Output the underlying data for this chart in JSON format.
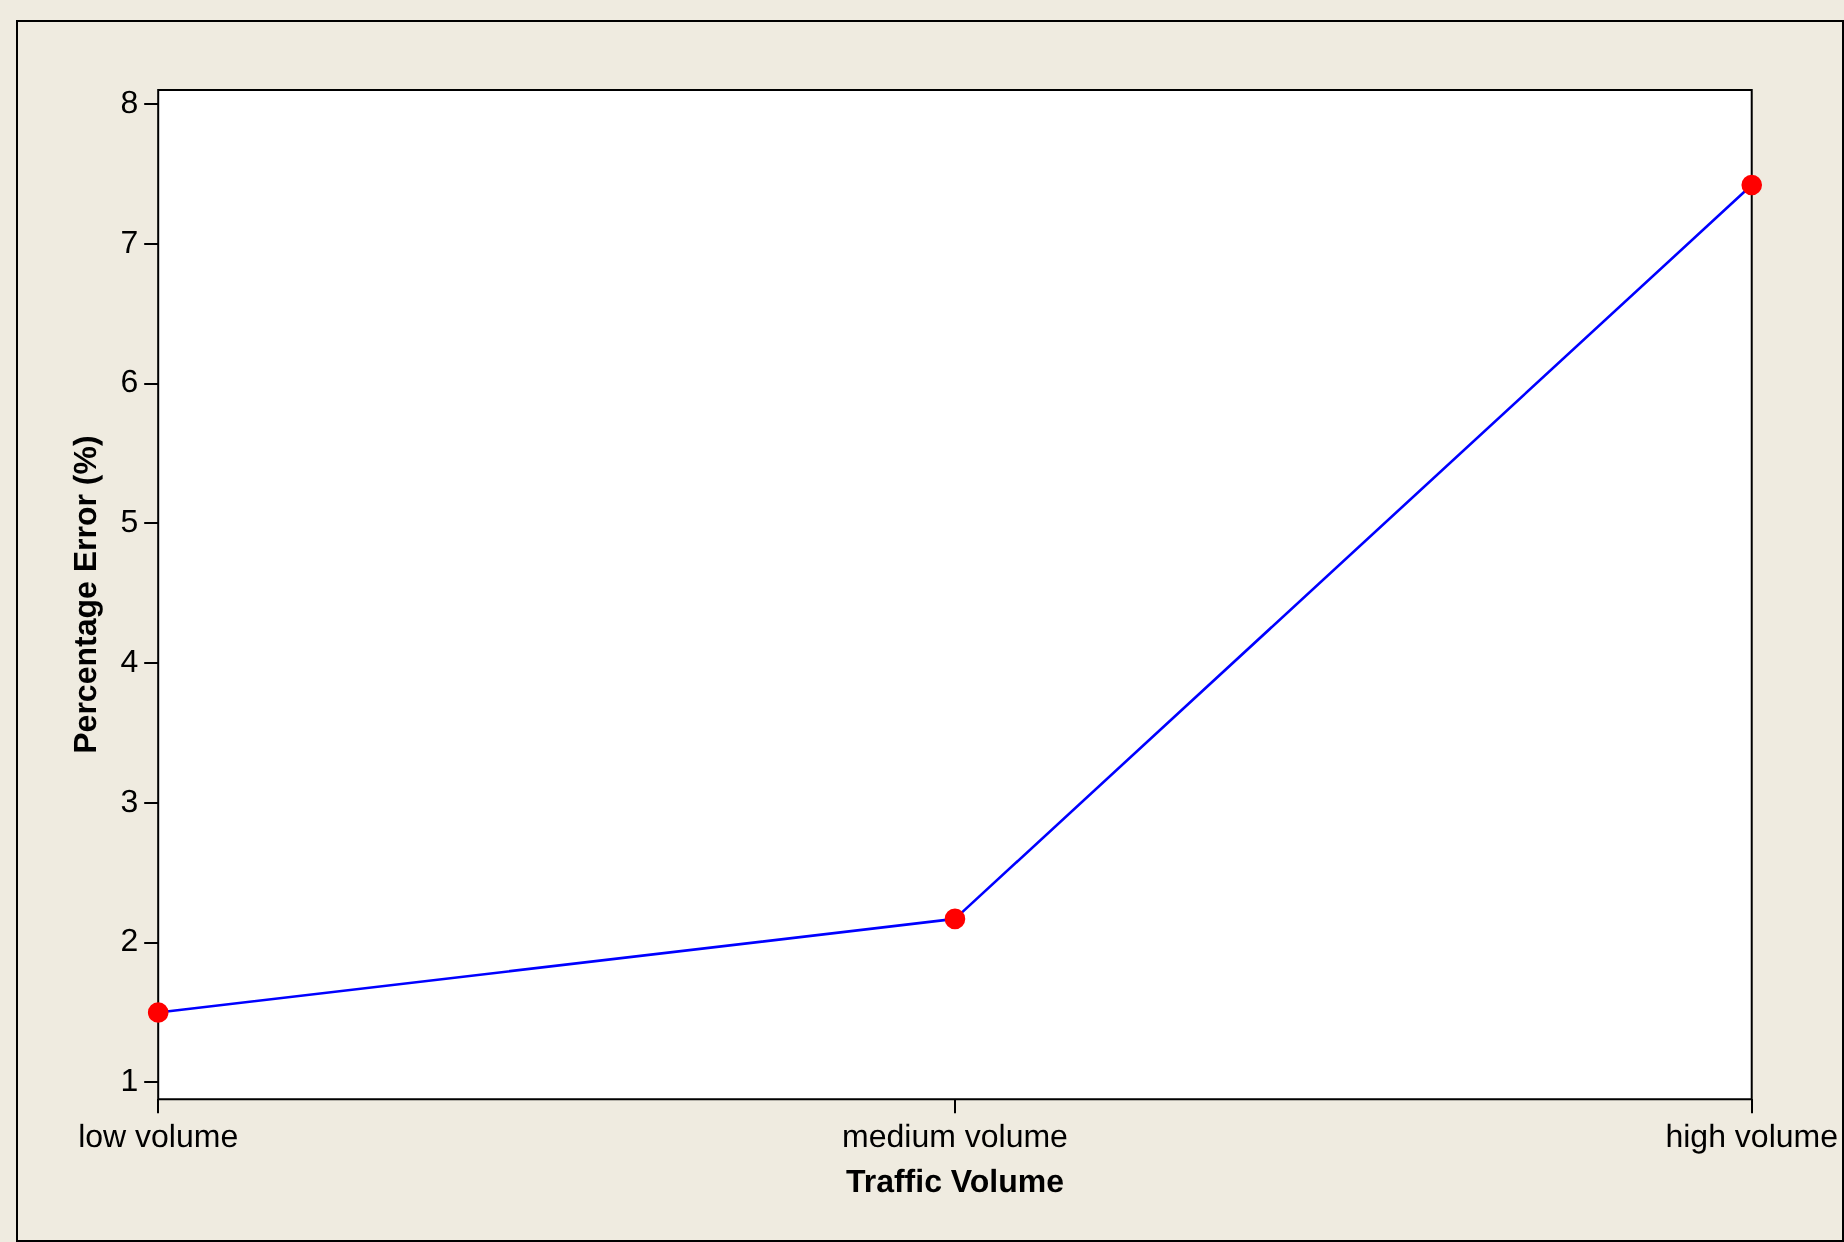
{
  "chart_data": {
    "type": "line",
    "xlabel": "Traffic Volume",
    "ylabel": "Percentage Error (%)",
    "categories": [
      "low volume",
      "medium volume",
      "high volume"
    ],
    "series": [
      {
        "color": "#0000ff",
        "colors": [
          "#ff0000",
          "#ff0000",
          "#ff0000"
        ],
        "values": [
          1.5,
          2.17,
          7.42
        ]
      }
    ],
    "ylim": [
      0.88,
      8.1
    ],
    "yticks": [
      1,
      2,
      3,
      4,
      5,
      6,
      7,
      8
    ],
    "marker": "circle",
    "grid": false,
    "legend": false
  }
}
